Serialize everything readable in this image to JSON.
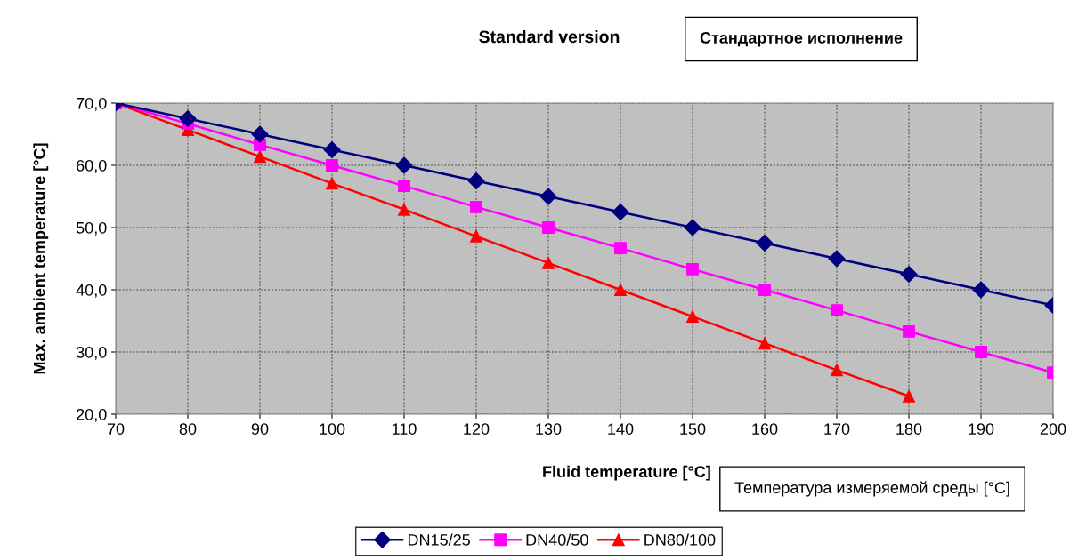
{
  "chart_data": {
    "type": "line",
    "xlabel": "Fluid temperature [°C]",
    "ylabel": "Max. ambient temperature [°C]",
    "annotations": [
      "Standard version",
      "Стандартное исполнение",
      "Температура измеряемой среды [°C]"
    ],
    "x": [
      70,
      80,
      90,
      100,
      110,
      120,
      130,
      140,
      150,
      160,
      170,
      180,
      190,
      200
    ],
    "series": [
      {
        "name": "DN15/25",
        "color": "#000080",
        "marker": "diamond",
        "values": [
          70,
          67.5,
          65,
          62.5,
          60,
          57.5,
          55,
          52.5,
          50,
          47.5,
          45,
          42.5,
          40,
          37.5
        ]
      },
      {
        "name": "DN40/50",
        "color": "#ff00ff",
        "marker": "square",
        "values": [
          70,
          66.7,
          63.3,
          60,
          56.7,
          53.3,
          50,
          46.7,
          43.3,
          40,
          36.7,
          33.3,
          30,
          26.7
        ]
      },
      {
        "name": "DN80/100",
        "color": "#ff0000",
        "marker": "triangle",
        "values": [
          70,
          65.7,
          61.4,
          57.1,
          52.9,
          48.6,
          44.3,
          40,
          35.7,
          31.4,
          27.1,
          22.9,
          null,
          null
        ]
      }
    ],
    "xlim": [
      70,
      200
    ],
    "xticks": [
      70,
      80,
      90,
      100,
      110,
      120,
      130,
      140,
      150,
      160,
      170,
      180,
      190,
      200
    ],
    "ylim": [
      20,
      70
    ],
    "yticks": [
      {
        "value": 20,
        "label": "20,0"
      },
      {
        "value": 30,
        "label": "30,0"
      },
      {
        "value": 40,
        "label": "40,0"
      },
      {
        "value": 50,
        "label": "50,0"
      },
      {
        "value": 60,
        "label": "60,0"
      },
      {
        "value": 70,
        "label": "70,0"
      }
    ],
    "grid": true,
    "legend": "bottom",
    "line_style": "solid"
  }
}
